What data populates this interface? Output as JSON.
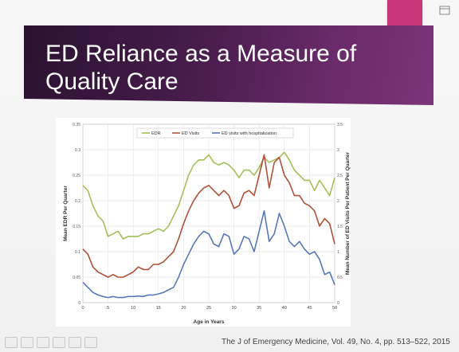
{
  "slide": {
    "title": "ED Reliance as a Measure of\nQuality Care",
    "citation": "The J of Emergency Medicine, Vol. 49, No. 4, pp. 513–522, 2015"
  },
  "colors": {
    "banner": "#4a1d4e",
    "accent": "#c7377a",
    "edr": "#a5c05a",
    "visits": "#b0523a",
    "hosp": "#5878b8"
  },
  "chart_data": {
    "type": "line",
    "xlabel": "Age in Years",
    "ylabel_left": "Mean EDR Per Quarter",
    "ylabel_right": "Mean Number of ED Visits Per Patient Per Quarter",
    "xlim": [
      0,
      50
    ],
    "ylim_left": [
      0,
      0.35
    ],
    "ylim_right": [
      0,
      3.5
    ],
    "x_ticks": [
      "0",
      "5",
      "10",
      "15",
      "20",
      "25",
      "30",
      "35",
      "40",
      "45",
      "50"
    ],
    "y_ticks_left": [
      "0",
      "0.05",
      "0.1",
      "0.15",
      "0.2",
      "0.25",
      "0.3",
      "0.35"
    ],
    "y_ticks_right": [
      "0",
      "0.5",
      "1",
      "1.5",
      "2",
      "2.5",
      "3",
      "3.5"
    ],
    "legend_position": "top",
    "grid": true,
    "series": [
      {
        "name": "EDR",
        "axis": "left",
        "x": [
          0,
          1,
          2,
          3,
          4,
          5,
          6,
          7,
          8,
          9,
          10,
          11,
          12,
          13,
          14,
          15,
          16,
          17,
          18,
          19,
          20,
          21,
          22,
          23,
          24,
          25,
          26,
          27,
          28,
          29,
          30,
          31,
          32,
          33,
          34,
          35,
          36,
          37,
          38,
          39,
          40,
          41,
          42,
          43,
          44,
          45,
          46,
          47,
          48,
          49,
          50
        ],
        "y": [
          0.23,
          0.22,
          0.19,
          0.17,
          0.16,
          0.13,
          0.135,
          0.14,
          0.125,
          0.13,
          0.13,
          0.13,
          0.135,
          0.135,
          0.14,
          0.145,
          0.14,
          0.15,
          0.17,
          0.19,
          0.22,
          0.25,
          0.27,
          0.28,
          0.28,
          0.29,
          0.275,
          0.27,
          0.275,
          0.27,
          0.26,
          0.245,
          0.26,
          0.26,
          0.25,
          0.265,
          0.285,
          0.275,
          0.28,
          0.285,
          0.295,
          0.28,
          0.26,
          0.25,
          0.24,
          0.24,
          0.22,
          0.24,
          0.225,
          0.21,
          0.245
        ]
      },
      {
        "name": "ED Visits",
        "axis": "right",
        "x": [
          0,
          1,
          2,
          3,
          4,
          5,
          6,
          7,
          8,
          9,
          10,
          11,
          12,
          13,
          14,
          15,
          16,
          17,
          18,
          19,
          20,
          21,
          22,
          23,
          24,
          25,
          26,
          27,
          28,
          29,
          30,
          31,
          32,
          33,
          34,
          35,
          36,
          37,
          38,
          39,
          40,
          41,
          42,
          43,
          44,
          45,
          46,
          47,
          48,
          49,
          50
        ],
        "y": [
          1.05,
          0.95,
          0.7,
          0.6,
          0.55,
          0.5,
          0.55,
          0.5,
          0.5,
          0.55,
          0.6,
          0.7,
          0.65,
          0.65,
          0.75,
          0.75,
          0.8,
          0.9,
          1.0,
          1.25,
          1.55,
          1.8,
          2.0,
          2.15,
          2.25,
          2.3,
          2.2,
          2.1,
          2.2,
          2.1,
          1.85,
          1.9,
          2.15,
          2.2,
          2.1,
          2.5,
          2.9,
          2.25,
          2.75,
          2.85,
          2.5,
          2.35,
          2.1,
          2.1,
          1.95,
          1.9,
          1.8,
          1.5,
          1.65,
          1.55,
          1.15
        ]
      },
      {
        "name": "ED visits with hospitalization",
        "axis": "right",
        "x": [
          0,
          1,
          2,
          3,
          4,
          5,
          6,
          7,
          8,
          9,
          10,
          11,
          12,
          13,
          14,
          15,
          16,
          17,
          18,
          19,
          20,
          21,
          22,
          23,
          24,
          25,
          26,
          27,
          28,
          29,
          30,
          31,
          32,
          33,
          34,
          35,
          36,
          37,
          38,
          39,
          40,
          41,
          42,
          43,
          44,
          45,
          46,
          47,
          48,
          49,
          50
        ],
        "y": [
          0.4,
          0.3,
          0.2,
          0.15,
          0.12,
          0.1,
          0.12,
          0.1,
          0.1,
          0.12,
          0.12,
          0.13,
          0.12,
          0.15,
          0.15,
          0.17,
          0.2,
          0.25,
          0.3,
          0.5,
          0.75,
          0.95,
          1.15,
          1.3,
          1.4,
          1.35,
          1.15,
          1.1,
          1.35,
          1.3,
          0.95,
          1.05,
          1.3,
          1.25,
          1.0,
          1.4,
          1.8,
          1.2,
          1.35,
          1.75,
          1.5,
          1.2,
          1.1,
          1.2,
          1.05,
          0.95,
          1.0,
          0.85,
          0.55,
          0.6,
          0.35
        ]
      }
    ]
  }
}
